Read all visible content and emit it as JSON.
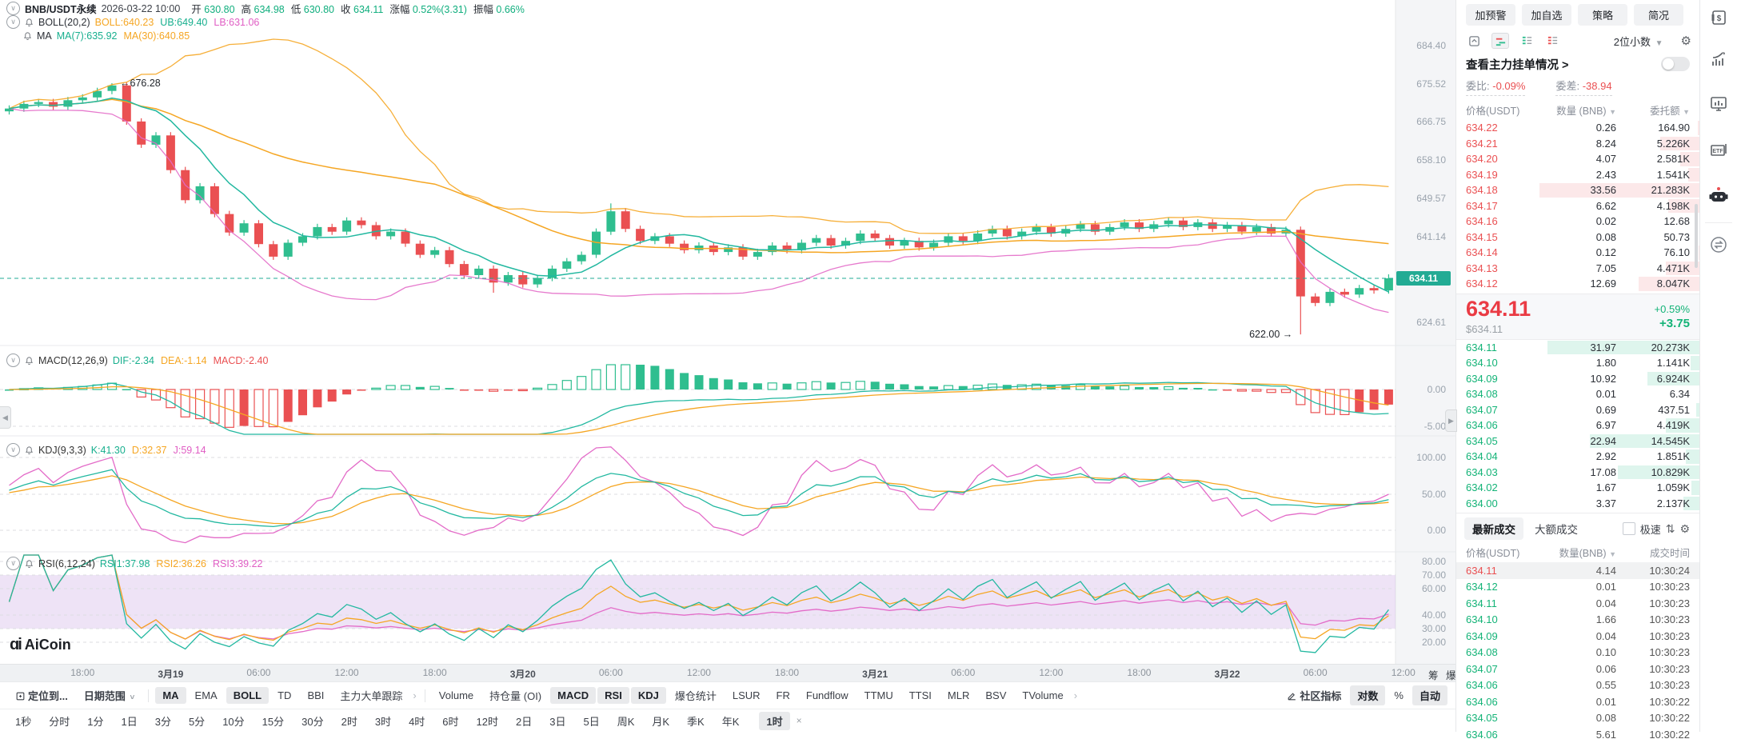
{
  "header": {
    "symbol": "BNB/USDT永续",
    "datetime": "2026-03-22 10:00",
    "ohlc": [
      {
        "k": "开",
        "v": "630.80"
      },
      {
        "k": "高",
        "v": "634.98"
      },
      {
        "k": "低",
        "v": "630.80"
      },
      {
        "k": "收",
        "v": "634.11"
      },
      {
        "k": "涨幅",
        "v": "0.52%(3.31)"
      },
      {
        "k": "振幅",
        "v": "0.66%"
      }
    ],
    "boll_row": {
      "name": "BOLL(20,2)",
      "items": [
        {
          "t": "BOLL:640.23",
          "c": "c-orange"
        },
        {
          "t": "UB:649.40",
          "c": "c-teal"
        },
        {
          "t": "LB:631.06",
          "c": "c-magenta"
        }
      ]
    },
    "ma_row": {
      "name": "MA",
      "items": [
        {
          "t": "MA(7):635.92",
          "c": "c-teal"
        },
        {
          "t": "MA(30):640.85",
          "c": "c-orange"
        }
      ]
    },
    "macd_row": {
      "name": "MACD(12,26,9)",
      "items": [
        {
          "t": "DIF:-2.34",
          "c": "c-teal"
        },
        {
          "t": "DEA:-1.14",
          "c": "c-orange"
        },
        {
          "t": "MACD:-2.40",
          "c": "c-red"
        }
      ]
    },
    "kdj_row": {
      "name": "KDJ(9,3,3)",
      "items": [
        {
          "t": "K:41.30",
          "c": "c-teal"
        },
        {
          "t": "D:32.37",
          "c": "c-orange"
        },
        {
          "t": "J:59.14",
          "c": "c-magenta"
        }
      ]
    },
    "rsi_row": {
      "name": "RSI(6,12,24)",
      "items": [
        {
          "t": "RSI1:37.98",
          "c": "c-teal"
        },
        {
          "t": "RSI2:36.26",
          "c": "c-orange"
        },
        {
          "t": "RSI3:39.22",
          "c": "c-magenta"
        }
      ]
    }
  },
  "chart_data": {
    "type": "candlestick",
    "interval": "1小时",
    "first_open": 670.2,
    "closes": [
      670.8,
      671.8,
      672.2,
      671.2,
      672.6,
      673.2,
      674.6,
      675.8,
      668.0,
      663.0,
      665.0,
      657.5,
      651.0,
      654.0,
      648.0,
      644.0,
      646.0,
      641.5,
      638.8,
      641.8,
      643.2,
      645.2,
      644.2,
      646.6,
      645.6,
      643.2,
      644.2,
      641.6,
      639.2,
      640.2,
      637.2,
      634.8,
      636.2,
      633.2,
      634.8,
      632.8,
      634.2,
      636.2,
      637.8,
      639.2,
      644.2,
      648.6,
      644.8,
      642.2,
      643.2,
      641.6,
      640.2,
      641.2,
      639.8,
      640.8,
      638.8,
      639.8,
      641.2,
      640.2,
      641.8,
      642.8,
      641.2,
      642.2,
      643.8,
      642.8,
      641.2,
      642.2,
      640.8,
      641.8,
      643.2,
      642.2,
      643.8,
      644.8,
      643.2,
      644.2,
      645.2,
      643.8,
      644.8,
      645.8,
      644.2,
      645.2,
      646.2,
      644.8,
      645.8,
      646.6,
      645.2,
      646.2,
      644.8,
      645.6,
      644.2,
      645.2,
      643.8,
      644.6,
      630.2,
      628.8,
      631.2,
      630.6,
      632.0,
      631.5,
      634.11
    ],
    "wick_overrides": {
      "7": {
        "h": 676.28
      },
      "33": {
        "l": 631.0
      },
      "41": {
        "h": 650.3
      },
      "88": {
        "l": 622.0
      },
      "94": {
        "h": 634.98
      }
    },
    "current_price": "634.11",
    "annotation_high": "676.28",
    "annotation_low": "622.00",
    "y_ticks_price": [
      {
        "t": "684.40",
        "y": 57
      },
      {
        "t": "675.52",
        "y": 105
      },
      {
        "t": "666.75",
        "y": 152
      },
      {
        "t": "658.10",
        "y": 200
      },
      {
        "t": "649.57",
        "y": 248
      },
      {
        "t": "641.14",
        "y": 296
      },
      {
        "t": "624.61",
        "y": 403
      }
    ],
    "y_ticks_macd": [
      {
        "t": "0.00",
        "y": 487
      },
      {
        "t": "-5.00",
        "y": 533
      }
    ],
    "y_ticks_kdj": [
      {
        "t": "100.00",
        "y": 572
      },
      {
        "t": "50.00",
        "y": 618
      },
      {
        "t": "0.00",
        "y": 663
      }
    ],
    "y_ticks_rsi": [
      {
        "t": "80.00",
        "y": 702
      },
      {
        "t": "70.00",
        "y": 719
      },
      {
        "t": "60.00",
        "y": 736
      },
      {
        "t": "40.00",
        "y": 769
      },
      {
        "t": "30.00",
        "y": 786
      },
      {
        "t": "20.00",
        "y": 803
      }
    ],
    "x_ticks": [
      {
        "label": "18:00",
        "idx": 5
      },
      {
        "label": "3月19",
        "idx": 11,
        "bold": true
      },
      {
        "label": "06:00",
        "idx": 17
      },
      {
        "label": "12:00",
        "idx": 23
      },
      {
        "label": "18:00",
        "idx": 29
      },
      {
        "label": "3月20",
        "idx": 35,
        "bold": true
      },
      {
        "label": "06:00",
        "idx": 41
      },
      {
        "label": "12:00",
        "idx": 47
      },
      {
        "label": "18:00",
        "idx": 53
      },
      {
        "label": "3月21",
        "idx": 59,
        "bold": true
      },
      {
        "label": "06:00",
        "idx": 65
      },
      {
        "label": "12:00",
        "idx": 71
      },
      {
        "label": "18:00",
        "idx": 77
      },
      {
        "label": "3月22",
        "idx": 83,
        "bold": true
      },
      {
        "label": "06:00",
        "idx": 89
      },
      {
        "label": "12:00",
        "idx": 95
      }
    ],
    "x_extras": [
      {
        "label": "筹",
        "x": 1786
      },
      {
        "label": "爆",
        "x": 1808
      }
    ]
  },
  "colors": {
    "up": "#2fbe8f",
    "down": "#ea5052",
    "teal": "#22b8a0",
    "orange": "#f5a623",
    "magenta": "#e36bc8",
    "badge": "#22ab94",
    "band": "#b37fd6"
  },
  "toolbar1": {
    "left": [
      {
        "label": "定位到...",
        "icon": "locate-icon",
        "bold": true
      },
      {
        "label": "日期范围",
        "caret": true,
        "bold": true
      },
      {
        "type": "divider"
      },
      {
        "label": "MA",
        "active": true
      },
      {
        "label": "EMA"
      },
      {
        "label": "BOLL",
        "active": true
      },
      {
        "label": "TD"
      },
      {
        "label": "BBI"
      },
      {
        "label": "主力大单跟踪"
      },
      {
        "label": "›",
        "muted": true
      },
      {
        "type": "divider"
      },
      {
        "label": "Volume"
      },
      {
        "label": "持仓量 (OI)"
      },
      {
        "label": "MACD",
        "active": true
      },
      {
        "label": "RSI",
        "active": true
      },
      {
        "label": "KDJ",
        "active": true
      },
      {
        "label": "爆仓统计"
      },
      {
        "label": "LSUR"
      },
      {
        "label": "FR"
      },
      {
        "label": "Fundflow"
      },
      {
        "label": "TTMU"
      },
      {
        "label": "TTSI"
      },
      {
        "label": "MLR"
      },
      {
        "label": "BSV"
      },
      {
        "label": "TVolume"
      },
      {
        "label": "›",
        "muted": true
      }
    ],
    "right": [
      {
        "label": "社区指标",
        "icon": "edit-icon",
        "bold": true
      },
      {
        "label": "对数",
        "active": true
      },
      {
        "label": "%"
      },
      {
        "label": "自动",
        "active": true
      }
    ]
  },
  "toolbar2": {
    "items": [
      "1秒",
      "分时",
      "1分",
      "1日",
      "3分",
      "5分",
      "10分",
      "15分",
      "30分",
      "2时",
      "3时",
      "4时",
      "6时",
      "12时",
      "2日",
      "3日",
      "5日",
      "周K",
      "月K",
      "季K",
      "年K"
    ],
    "active_tf": "1时",
    "close": "×"
  },
  "panel": {
    "buttons": [
      "加预警",
      "加自选",
      "策略",
      "简况"
    ],
    "decimals": "2位小数",
    "main_link": "查看主力挂单情况 >",
    "ratio_label": "委比:",
    "ratio_value": "-0.09%",
    "diff_label": "委差:",
    "diff_value": "-38.94",
    "ob_headers": [
      "价格(USDT)",
      "数量 (BNB)",
      "委托额"
    ],
    "sells": [
      {
        "p": "634.22",
        "q": "0.26",
        "a": "164.90",
        "amt": 165
      },
      {
        "p": "634.21",
        "q": "8.24",
        "a": "5.226K",
        "amt": 5226
      },
      {
        "p": "634.20",
        "q": "4.07",
        "a": "2.581K",
        "amt": 2581
      },
      {
        "p": "634.19",
        "q": "2.43",
        "a": "1.541K",
        "amt": 1541
      },
      {
        "p": "634.18",
        "q": "33.56",
        "a": "21.283K",
        "amt": 21283
      },
      {
        "p": "634.17",
        "q": "6.62",
        "a": "4.198K",
        "amt": 4198
      },
      {
        "p": "634.16",
        "q": "0.02",
        "a": "12.68",
        "amt": 13
      },
      {
        "p": "634.15",
        "q": "0.08",
        "a": "50.73",
        "amt": 51
      },
      {
        "p": "634.14",
        "q": "0.12",
        "a": "76.10",
        "amt": 76
      },
      {
        "p": "634.13",
        "q": "7.05",
        "a": "4.471K",
        "amt": 4471
      },
      {
        "p": "634.12",
        "q": "12.69",
        "a": "8.047K",
        "amt": 8047
      }
    ],
    "buys": [
      {
        "p": "634.11",
        "q": "31.97",
        "a": "20.273K",
        "amt": 20273
      },
      {
        "p": "634.10",
        "q": "1.80",
        "a": "1.141K",
        "amt": 1141
      },
      {
        "p": "634.09",
        "q": "10.92",
        "a": "6.924K",
        "amt": 6924
      },
      {
        "p": "634.08",
        "q": "0.01",
        "a": "6.34",
        "amt": 6
      },
      {
        "p": "634.07",
        "q": "0.69",
        "a": "437.51",
        "amt": 438
      },
      {
        "p": "634.06",
        "q": "6.97",
        "a": "4.419K",
        "amt": 4419
      },
      {
        "p": "634.05",
        "q": "22.94",
        "a": "14.545K",
        "amt": 14545
      },
      {
        "p": "634.04",
        "q": "2.92",
        "a": "1.851K",
        "amt": 1851
      },
      {
        "p": "634.03",
        "q": "17.08",
        "a": "10.829K",
        "amt": 10829
      },
      {
        "p": "634.02",
        "q": "1.67",
        "a": "1.059K",
        "amt": 1059
      },
      {
        "p": "634.00",
        "q": "3.37",
        "a": "2.137K",
        "amt": 2137
      }
    ],
    "price_block": {
      "price": "634.11",
      "usd": "$634.11",
      "pct": "+0.59%",
      "abs": "+3.75"
    },
    "trade_tabs": {
      "latest": "最新成交",
      "large": "大额成交",
      "speed": "极速"
    },
    "tr_headers": [
      "价格(USDT)",
      "数量(BNB)",
      "成交时间"
    ],
    "trades": [
      {
        "p": "634.11",
        "q": "4.14",
        "t": "10:30:24",
        "side": "down",
        "hl": true
      },
      {
        "p": "634.12",
        "q": "0.01",
        "t": "10:30:23",
        "side": "up"
      },
      {
        "p": "634.11",
        "q": "0.04",
        "t": "10:30:23",
        "side": "up"
      },
      {
        "p": "634.10",
        "q": "1.66",
        "t": "10:30:23",
        "side": "up"
      },
      {
        "p": "634.09",
        "q": "0.04",
        "t": "10:30:23",
        "side": "up"
      },
      {
        "p": "634.08",
        "q": "0.10",
        "t": "10:30:23",
        "side": "up"
      },
      {
        "p": "634.07",
        "q": "0.06",
        "t": "10:30:23",
        "side": "up"
      },
      {
        "p": "634.06",
        "q": "0.55",
        "t": "10:30:23",
        "side": "up"
      },
      {
        "p": "634.06",
        "q": "0.01",
        "t": "10:30:22",
        "side": "up"
      },
      {
        "p": "634.05",
        "q": "0.08",
        "t": "10:30:22",
        "side": "up"
      },
      {
        "p": "634.06",
        "q": "5.61",
        "t": "10:30:22",
        "side": "up"
      }
    ]
  },
  "logo": {
    "mark": "ɑi",
    "text": "AiCoin"
  }
}
